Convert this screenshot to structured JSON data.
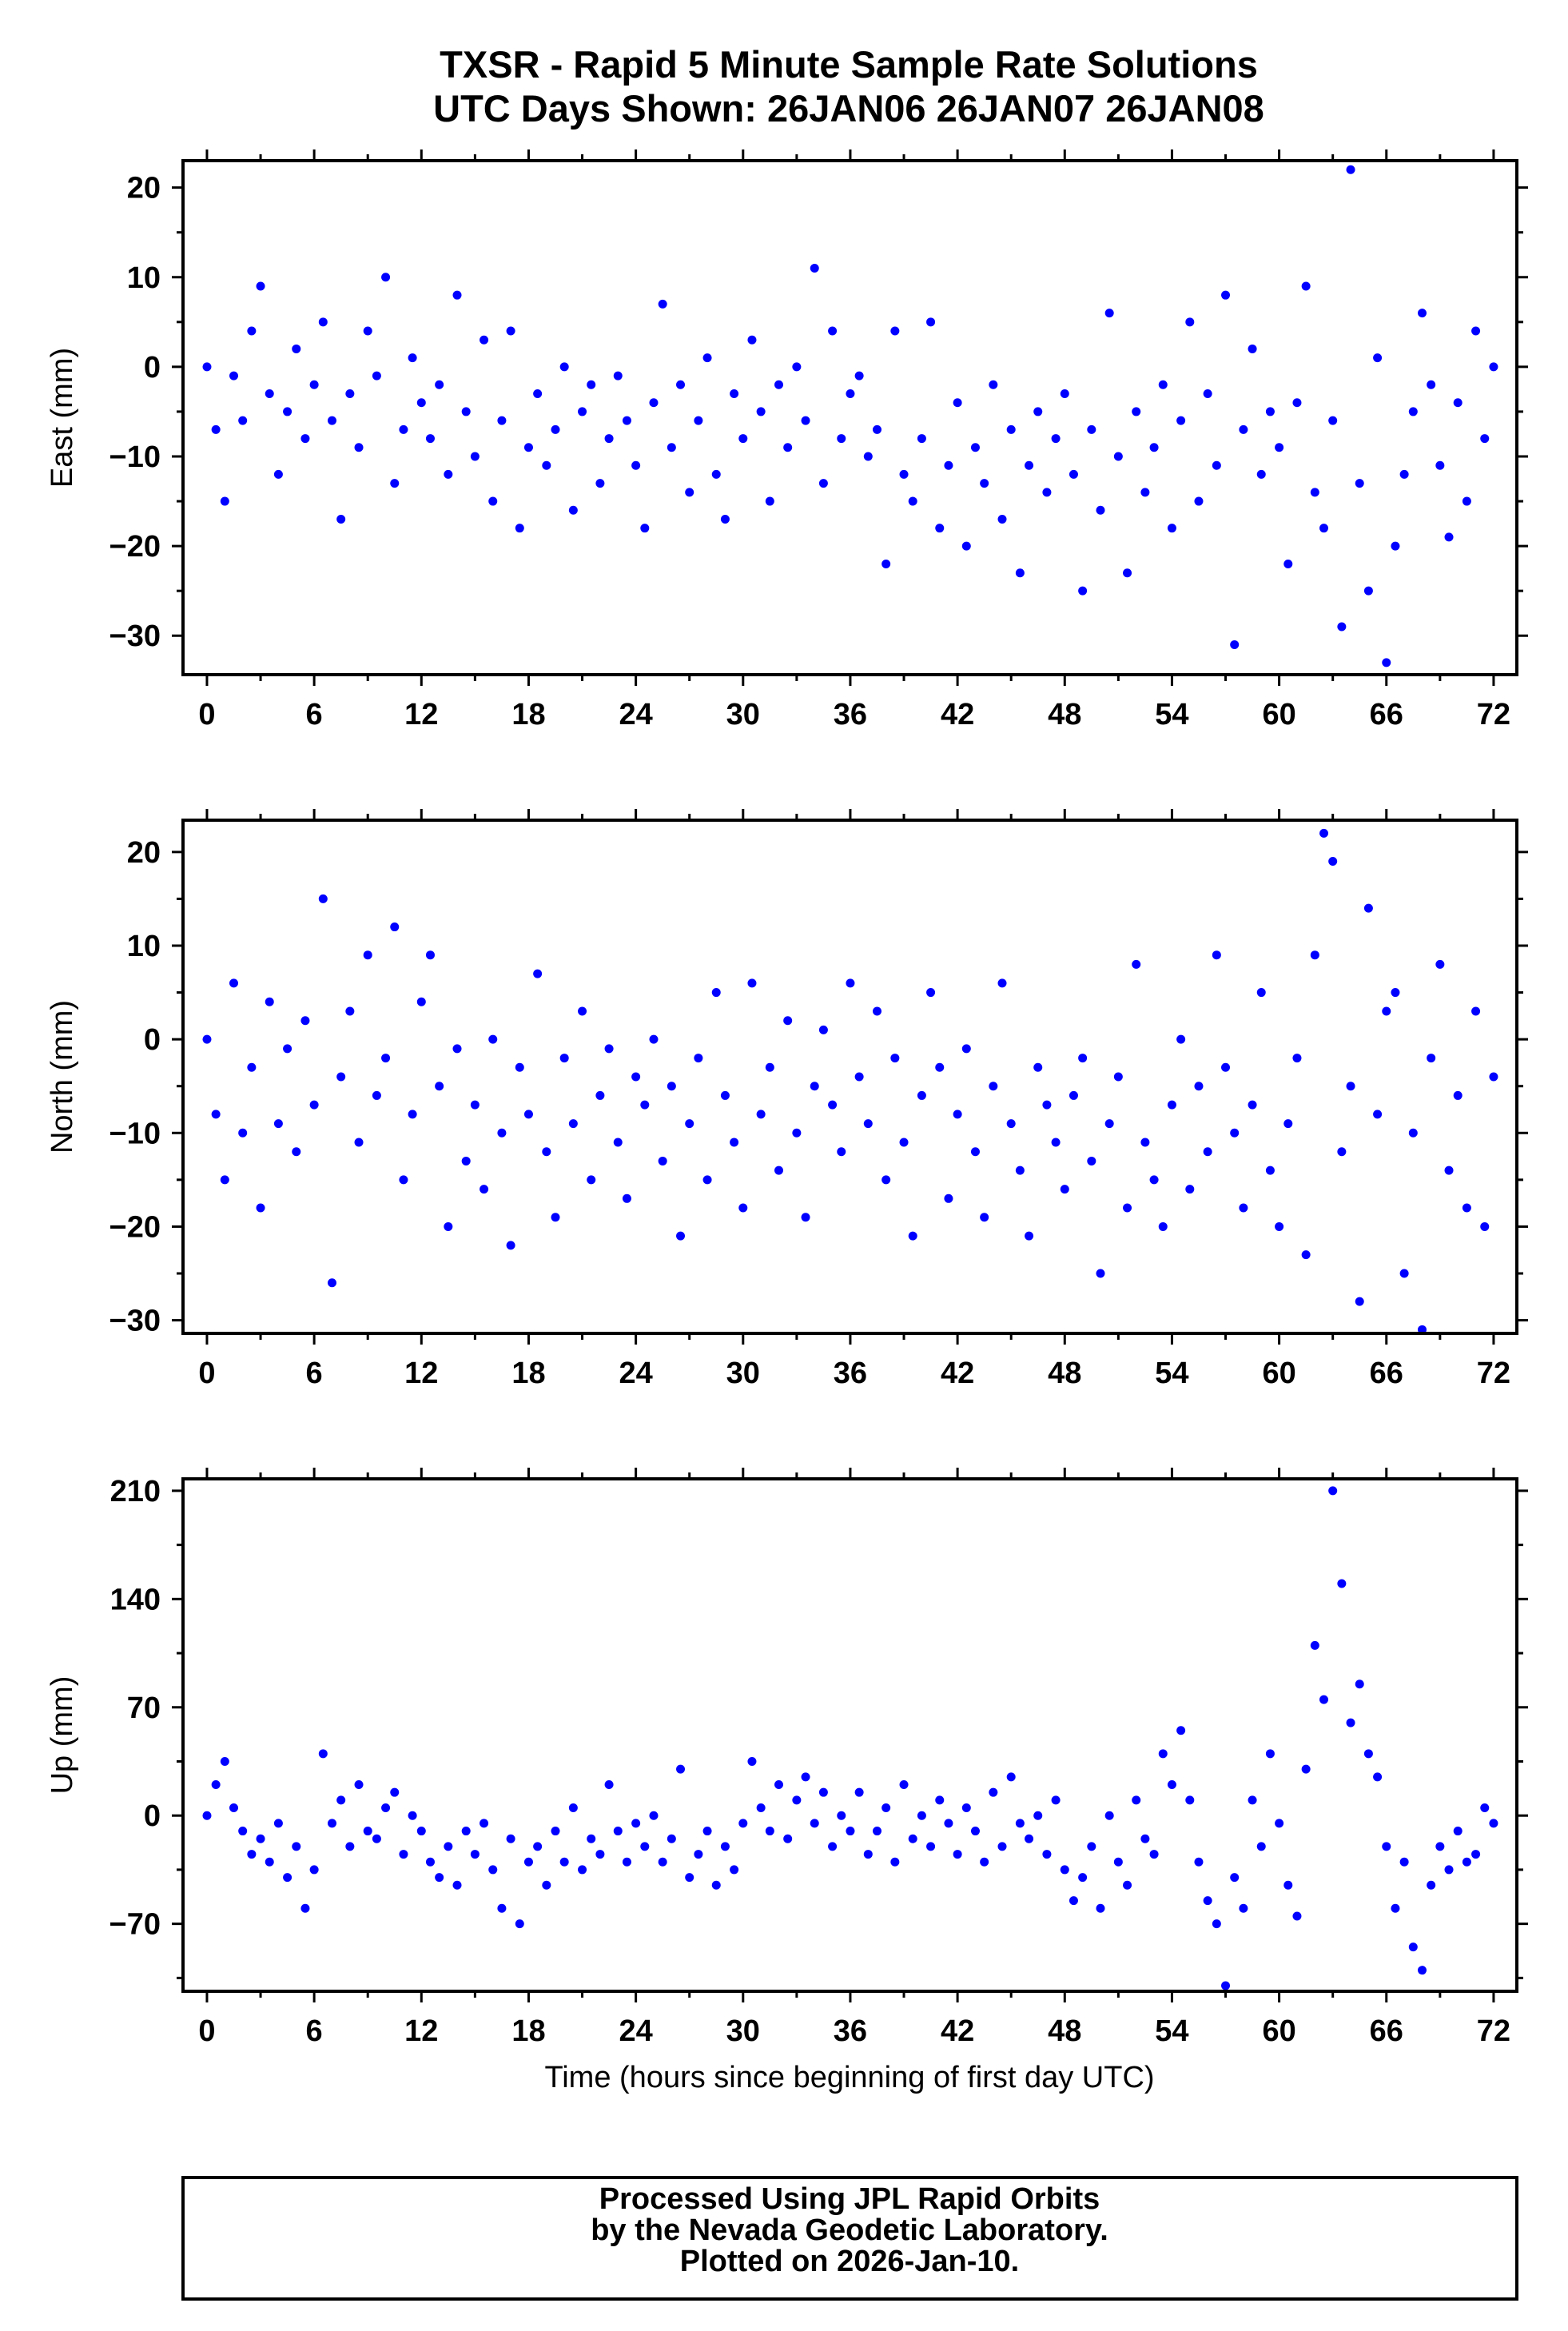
{
  "title": [
    "TXSR - Rapid 5 Minute Sample Rate Solutions",
    "UTC Days Shown:  26JAN06 26JAN07 26JAN08"
  ],
  "footer": [
    "Processed Using JPL Rapid Orbits",
    "by the Nevada Geodetic Laboratory.",
    "Plotted on 2026-Jan-10."
  ],
  "colors": {
    "points": "#0000ff",
    "frame": "#000000"
  },
  "chart_data": [
    {
      "type": "scatter",
      "name": "east",
      "ylabel": "East (mm)",
      "xlabel": "",
      "xlim": [
        -1.34,
        73.3
      ],
      "ylim": [
        -34.35,
        23.0
      ],
      "xticks": [
        0,
        6,
        12,
        18,
        24,
        30,
        36,
        42,
        48,
        54,
        60,
        66,
        72
      ],
      "yticks": [
        20,
        10,
        0,
        -10,
        -20,
        -30
      ],
      "x_start": 0,
      "x_step": 0.5,
      "values": [
        0,
        -7,
        -15,
        -1,
        -6,
        4,
        9,
        -3,
        -12,
        -5,
        2,
        -8,
        -2,
        5,
        -6,
        -17,
        -3,
        -9,
        4,
        -1,
        10,
        -13,
        -7,
        1,
        -4,
        -8,
        -2,
        -12,
        8,
        -5,
        -10,
        3,
        -15,
        -6,
        4,
        -18,
        -9,
        -3,
        -11,
        -7,
        0,
        -16,
        -5,
        -2,
        -13,
        -8,
        -1,
        -6,
        -11,
        -18,
        -4,
        7,
        -9,
        -2,
        -14,
        -6,
        1,
        -12,
        -17,
        -3,
        -8,
        3,
        -5,
        -15,
        -2,
        -9,
        0,
        -6,
        11,
        -13,
        4,
        -8,
        -3,
        -1,
        -10,
        -7,
        -22,
        4,
        -12,
        -15,
        -8,
        5,
        -18,
        -11,
        -4,
        -20,
        -9,
        -13,
        -2,
        -17,
        -7,
        -23,
        -11,
        -5,
        -14,
        -8,
        -3,
        -12,
        -25,
        -7,
        -16,
        6,
        -10,
        -23,
        -5,
        -14,
        -9,
        -2,
        -18,
        -6,
        5,
        -15,
        -3,
        -11,
        8,
        -31,
        -7,
        2,
        -12,
        -5,
        -9,
        -22,
        -4,
        9,
        -14,
        -18,
        -6,
        -29,
        22,
        -13,
        -25,
        1,
        -33,
        -20,
        -12,
        -5,
        6,
        -2,
        -11,
        -19,
        -4,
        -15,
        4,
        -8,
        0
      ]
    },
    {
      "type": "scatter",
      "name": "north",
      "ylabel": "North (mm)",
      "xlabel": "",
      "xlim": [
        -1.34,
        73.3
      ],
      "ylim": [
        -31.4,
        23.4
      ],
      "xticks": [
        0,
        6,
        12,
        18,
        24,
        30,
        36,
        42,
        48,
        54,
        60,
        66,
        72
      ],
      "yticks": [
        20,
        10,
        0,
        -10,
        -20,
        -30
      ],
      "x_start": 0,
      "x_step": 0.5,
      "values": [
        0,
        -8,
        -15,
        6,
        -10,
        -3,
        -18,
        4,
        -9,
        -1,
        -12,
        2,
        -7,
        15,
        -26,
        -4,
        3,
        -11,
        9,
        -6,
        -2,
        12,
        -15,
        -8,
        4,
        9,
        -5,
        -20,
        -1,
        -13,
        -7,
        -16,
        0,
        -10,
        -22,
        -3,
        -8,
        7,
        -12,
        -19,
        -2,
        -9,
        3,
        -15,
        -6,
        -1,
        -11,
        -17,
        -4,
        -7,
        0,
        -13,
        -5,
        -21,
        -9,
        -2,
        -15,
        5,
        -6,
        -11,
        -18,
        6,
        -8,
        -3,
        -14,
        2,
        -10,
        -19,
        -5,
        1,
        -7,
        -12,
        6,
        -4,
        -9,
        3,
        -15,
        -2,
        -11,
        -21,
        -6,
        5,
        -3,
        -17,
        -8,
        -1,
        -12,
        -19,
        -5,
        6,
        -9,
        -14,
        -21,
        -3,
        -7,
        -11,
        -16,
        -6,
        -2,
        -13,
        -25,
        -9,
        -4,
        -18,
        8,
        -11,
        -15,
        -20,
        -7,
        0,
        -16,
        -5,
        -12,
        9,
        -3,
        -10,
        -18,
        -7,
        5,
        -14,
        -20,
        -9,
        -2,
        -23,
        9,
        22,
        19,
        -12,
        -5,
        -28,
        14,
        -8,
        3,
        5,
        -25,
        -10,
        -31,
        -2,
        8,
        -14,
        -6,
        -18,
        3,
        -20,
        -4
      ]
    },
    {
      "type": "scatter",
      "name": "up",
      "ylabel": "Up (mm)",
      "xlabel": "Time (hours since beginning of first day UTC)",
      "xlim": [
        -1.34,
        73.3
      ],
      "ylim": [
        -113.6,
        217.7
      ],
      "xticks": [
        0,
        6,
        12,
        18,
        24,
        30,
        36,
        42,
        48,
        54,
        60,
        66,
        72
      ],
      "yticks": [
        210,
        140,
        70,
        0,
        -70
      ],
      "x_start": 0,
      "x_step": 0.5,
      "values": [
        0,
        20,
        35,
        5,
        -10,
        -25,
        -15,
        -30,
        -5,
        -40,
        -20,
        -60,
        -35,
        40,
        -5,
        10,
        -20,
        20,
        -10,
        -15,
        5,
        15,
        -25,
        0,
        -10,
        -30,
        -40,
        -20,
        -45,
        -10,
        -25,
        -5,
        -35,
        -60,
        -15,
        -70,
        -30,
        -20,
        -45,
        -10,
        -30,
        5,
        -35,
        -15,
        -25,
        20,
        -10,
        -30,
        -5,
        -20,
        0,
        -30,
        -15,
        30,
        -40,
        -25,
        -10,
        -45,
        -20,
        -35,
        -5,
        35,
        5,
        -10,
        20,
        -15,
        10,
        25,
        -5,
        15,
        -20,
        0,
        -10,
        15,
        -25,
        -10,
        5,
        -30,
        20,
        -15,
        0,
        -20,
        10,
        -5,
        -25,
        5,
        -10,
        -30,
        15,
        -20,
        25,
        -5,
        -15,
        0,
        -25,
        10,
        -35,
        -55,
        -40,
        -20,
        -60,
        0,
        -30,
        -45,
        10,
        -15,
        -25,
        40,
        20,
        55,
        10,
        -30,
        -55,
        -70,
        -110,
        -40,
        -60,
        10,
        -20,
        40,
        -5,
        -45,
        -65,
        30,
        110,
        75,
        210,
        150,
        60,
        85,
        40,
        25,
        -20,
        -60,
        -30,
        -85,
        -100,
        -45,
        -20,
        -35,
        -10,
        -30,
        -25,
        5,
        -5
      ]
    }
  ]
}
